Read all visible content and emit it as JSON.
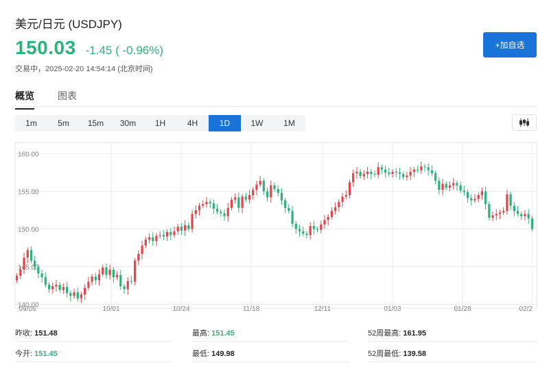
{
  "header": {
    "title": "美元/日元 (USDJPY)",
    "price": "150.03",
    "change": "-1.45 ( -0.96%)",
    "status": "交易中，2025-02-20 14:54:14 (北京时间)",
    "add_button": "+加自选"
  },
  "tabs": [
    {
      "label": "概览",
      "active": true
    },
    {
      "label": "图表",
      "active": false
    }
  ],
  "ranges": [
    {
      "label": "1m",
      "active": false
    },
    {
      "label": "5m",
      "active": false
    },
    {
      "label": "15m",
      "active": false
    },
    {
      "label": "30m",
      "active": false
    },
    {
      "label": "1H",
      "active": false
    },
    {
      "label": "4H",
      "active": false
    },
    {
      "label": "1D",
      "active": true
    },
    {
      "label": "1W",
      "active": false
    },
    {
      "label": "1M",
      "active": false
    }
  ],
  "colors": {
    "up": "#e0474c",
    "down": "#2db37a",
    "accent": "#1a73d9"
  },
  "chart_data": {
    "type": "candlestick",
    "y_ticks": [
      "160.00",
      "155.00",
      "150.00",
      "145.00",
      "140.00"
    ],
    "x_ticks": [
      "09/06",
      "10/01",
      "10/24",
      "11/18",
      "12/11",
      "01/03",
      "01/28",
      "02/2"
    ],
    "ylim": [
      139.5,
      161.5
    ],
    "grid": true,
    "close_series": [
      143.8,
      144.6,
      146.2,
      147.2,
      145.8,
      145.0,
      144.1,
      143.6,
      142.6,
      142.0,
      142.4,
      142.6,
      141.9,
      142.3,
      141.5,
      141.1,
      141.6,
      140.8,
      141.3,
      142.2,
      143.0,
      143.7,
      143.2,
      144.0,
      144.9,
      143.9,
      144.6,
      143.6,
      143.9,
      142.4,
      142.0,
      143.1,
      143.0,
      145.8,
      146.7,
      147.8,
      148.6,
      148.9,
      148.4,
      149.1,
      149.2,
      149.0,
      149.6,
      149.2,
      149.7,
      150.3,
      149.8,
      150.5,
      150.0,
      152.0,
      152.5,
      153.1,
      153.3,
      153.6,
      153.4,
      152.7,
      152.3,
      152.1,
      151.7,
      152.8,
      153.9,
      154.2,
      152.8,
      154.3,
      153.9,
      154.5,
      155.2,
      155.9,
      156.4,
      155.0,
      154.2,
      155.8,
      155.3,
      154.8,
      153.8,
      152.8,
      152.4,
      150.7,
      150.0,
      149.7,
      149.4,
      149.2,
      150.4,
      150.0,
      149.9,
      150.6,
      151.2,
      151.6,
      152.4,
      152.9,
      153.6,
      154.3,
      154.5,
      156.2,
      157.4,
      157.6,
      157.0,
      157.3,
      157.6,
      157.3,
      157.2,
      158.2,
      157.9,
      157.5,
      157.3,
      157.6,
      157.5,
      157.3,
      156.9,
      157.1,
      157.6,
      157.9,
      157.8,
      158.3,
      158.2,
      157.8,
      157.4,
      156.4,
      155.2,
      156.0,
      155.5,
      155.8,
      156.1,
      155.8,
      155.1,
      154.9,
      154.1,
      153.8,
      154.0,
      154.5,
      155.0,
      153.3,
      151.5,
      151.8,
      152.0,
      152.2,
      152.4,
      154.6,
      153.1,
      152.4,
      152.0,
      151.7,
      152.0,
      151.4,
      150.03
    ]
  },
  "stats": {
    "prev_close_label": "昨收:",
    "prev_close": "151.48",
    "open_label": "今开:",
    "open": "151.45",
    "high_label": "最高:",
    "high": "151.45",
    "low_label": "最低:",
    "low": "149.98",
    "w52_high_label": "52周最高:",
    "w52_high": "161.95",
    "w52_low_label": "52周最低:",
    "w52_low": "139.58"
  }
}
